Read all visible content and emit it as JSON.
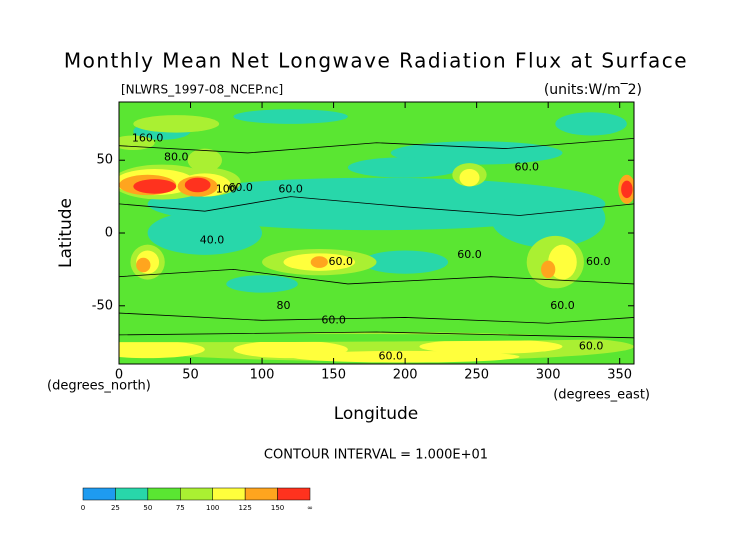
{
  "chart_data": {
    "type": "contour",
    "title": "Monthly Mean Net Longwave Radiation Flux at Surface",
    "subtitle": "[NLWRS_1997-08_NCEP.nc]",
    "units": "(units:W/m‾2)",
    "x_label": "Longitude",
    "y_label": "Latitude",
    "x_unit": "(degrees_east)",
    "y_unit": "(degrees_north)",
    "note": "CONTOUR INTERVAL = 1.000E+01",
    "xlim": [
      0,
      360
    ],
    "ylim": [
      -90,
      90
    ],
    "xticks": [
      0,
      50,
      100,
      150,
      200,
      250,
      300,
      350
    ],
    "yticks": [
      -50,
      0,
      50
    ],
    "contour_labels": [
      "160.0",
      "80.0",
      "100",
      "60.0",
      "40.0",
      "60.0",
      "80",
      "60.0",
      "60.0",
      "60.0",
      "60.0",
      "60.0",
      "60.0",
      "60.0",
      "60.0"
    ],
    "colorbar": {
      "ticks": [
        0,
        25,
        50,
        75,
        100,
        125,
        150
      ],
      "end_label": "∞",
      "colors": [
        "#1e9bf0",
        "#28d7aa",
        "#5ae632",
        "#aaf032",
        "#ffff3c",
        "#ffa51e",
        "#ff321e"
      ]
    }
  }
}
